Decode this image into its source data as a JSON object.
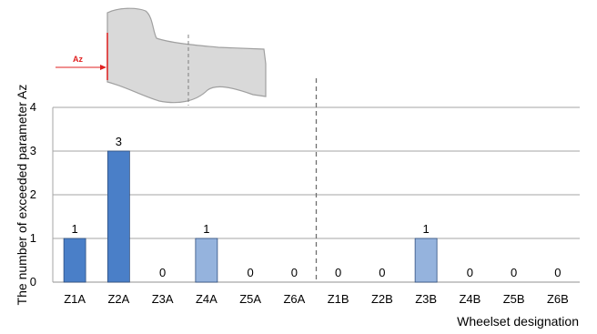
{
  "chart_data": {
    "type": "bar",
    "categories": [
      "Z1A",
      "Z2A",
      "Z3A",
      "Z4A",
      "Z5A",
      "Z6A",
      "Z1B",
      "Z2B",
      "Z3B",
      "Z4B",
      "Z5B",
      "Z6B"
    ],
    "values": [
      1,
      3,
      0,
      1,
      0,
      0,
      0,
      0,
      1,
      0,
      0,
      0
    ],
    "data_labels": [
      "1",
      "3",
      "0",
      "1",
      "0",
      "0",
      "0",
      "0",
      "1",
      "0",
      "0",
      "0"
    ],
    "bar_colors": [
      "#4a7fc8",
      "#4a7fc8",
      "#4a7fc8",
      "#95b3dd",
      "#95b3dd",
      "#95b3dd",
      "#4a7fc8",
      "#4a7fc8",
      "#95b3dd",
      "#95b3dd",
      "#95b3dd",
      "#95b3dd"
    ],
    "xlabel": "Wheelset designation",
    "ylabel": "The number of exceeded parameter  Az",
    "ylim": [
      0,
      4
    ],
    "yticks": [
      "0",
      "1",
      "2",
      "3",
      "4"
    ],
    "grid": true,
    "group_divider": "between Z6A and Z1B",
    "inset_marker_label": "Az"
  },
  "colors": {
    "bar_dark": "#4a7fc8",
    "bar_light": "#95b3dd",
    "grid": "#a6a6a6",
    "marker": "#e02020",
    "silhouette_fill": "#d9d9d9",
    "silhouette_stroke": "#a0a0a0"
  }
}
